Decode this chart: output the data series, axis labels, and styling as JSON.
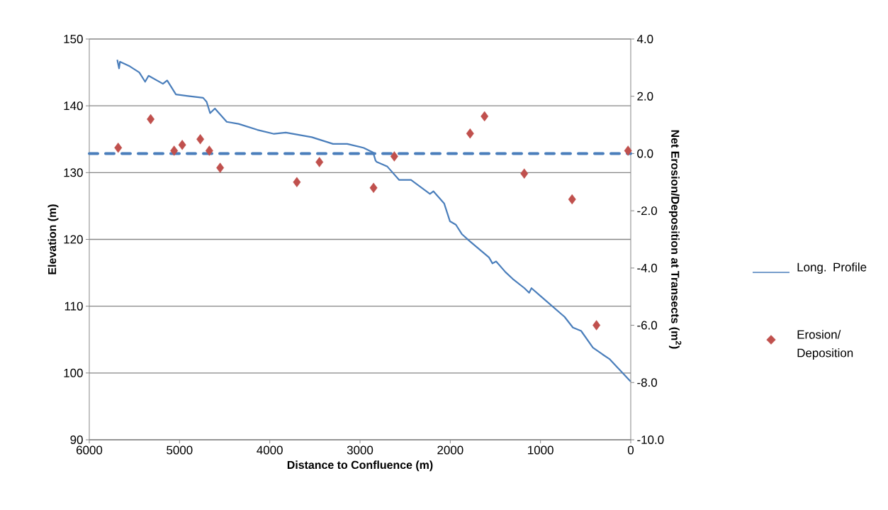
{
  "chart_data": {
    "type": "line",
    "xlabel": "Distance to Confluence (m)",
    "ylabel": "Elevation (m)",
    "y2label": "Net Erosion/Deposition at Transects (m$^{2}$)",
    "xlim": [
      6000,
      0
    ],
    "xticks": [
      6000,
      5000,
      4000,
      3000,
      2000,
      1000,
      0
    ],
    "ylim": [
      90,
      150
    ],
    "yticks": [
      90,
      100,
      110,
      120,
      130,
      140,
      150
    ],
    "y2lim": [
      -10,
      4
    ],
    "y2ticks": [
      {
        "value": -10,
        "label": "-10.0"
      },
      {
        "value": -8,
        "label": "-8.0"
      },
      {
        "value": -6,
        "label": "-6.0"
      },
      {
        "value": -4,
        "label": "-4.0"
      },
      {
        "value": -2,
        "label": "-2.0"
      },
      {
        "value": 0,
        "label": "0.0"
      },
      {
        "value": 2,
        "label": "2.0"
      },
      {
        "value": 4,
        "label": "4.0"
      }
    ],
    "grid": "y",
    "legend": "right",
    "ref_lines": [
      {
        "axis": "y2",
        "value": 0,
        "color": "#4a7ebb",
        "line_style": "dashed"
      }
    ],
    "series": [
      {
        "name": "Long. Profile",
        "color": "#4a7ebb",
        "x": [
          5690,
          5670,
          5660,
          5550,
          5446,
          5381,
          5343,
          5184,
          5137,
          5040,
          4922,
          4739,
          4700,
          4661,
          4608,
          4477,
          4346,
          4137,
          3953,
          3822,
          3535,
          3299,
          3142,
          2959,
          2854,
          2828,
          2815,
          2697,
          2566,
          2435,
          2225,
          2186,
          2068,
          2003,
          1938,
          1872,
          1781,
          1571,
          1532,
          1492,
          1388,
          1309,
          1178,
          1126,
          1100,
          733,
          641,
          550,
          419,
          314,
          236,
          0
        ],
        "values": [
          146.9,
          145.6,
          146.6,
          145.9,
          145.0,
          143.6,
          144.5,
          143.3,
          143.8,
          141.7,
          141.5,
          141.2,
          140.6,
          138.9,
          139.6,
          137.6,
          137.3,
          136.4,
          135.8,
          136.0,
          135.3,
          134.3,
          134.3,
          133.7,
          133.0,
          131.8,
          131.6,
          130.9,
          128.9,
          128.9,
          126.8,
          127.2,
          125.4,
          122.7,
          122.2,
          120.8,
          119.7,
          117.3,
          116.4,
          116.7,
          115.1,
          114.1,
          112.7,
          112.0,
          112.7,
          108.4,
          106.8,
          106.3,
          103.8,
          102.8,
          102.1,
          98.7
        ]
      },
      {
        "name": "Erosion/ Deposition",
        "type": "scatter",
        "axis": "y2",
        "color": "#c0504d",
        "marker": "diamond",
        "x": [
          5680,
          5320,
          5060,
          4970,
          4770,
          4670,
          4550,
          3700,
          3450,
          2850,
          2620,
          1780,
          1620,
          1180,
          650,
          380,
          30
        ],
        "values": [
          0.2,
          1.2,
          0.1,
          0.3,
          0.5,
          0.1,
          -0.5,
          -1.0,
          -0.3,
          -1.2,
          -0.1,
          0.7,
          1.3,
          -0.7,
          -1.6,
          -6.0,
          0.1
        ]
      }
    ]
  }
}
